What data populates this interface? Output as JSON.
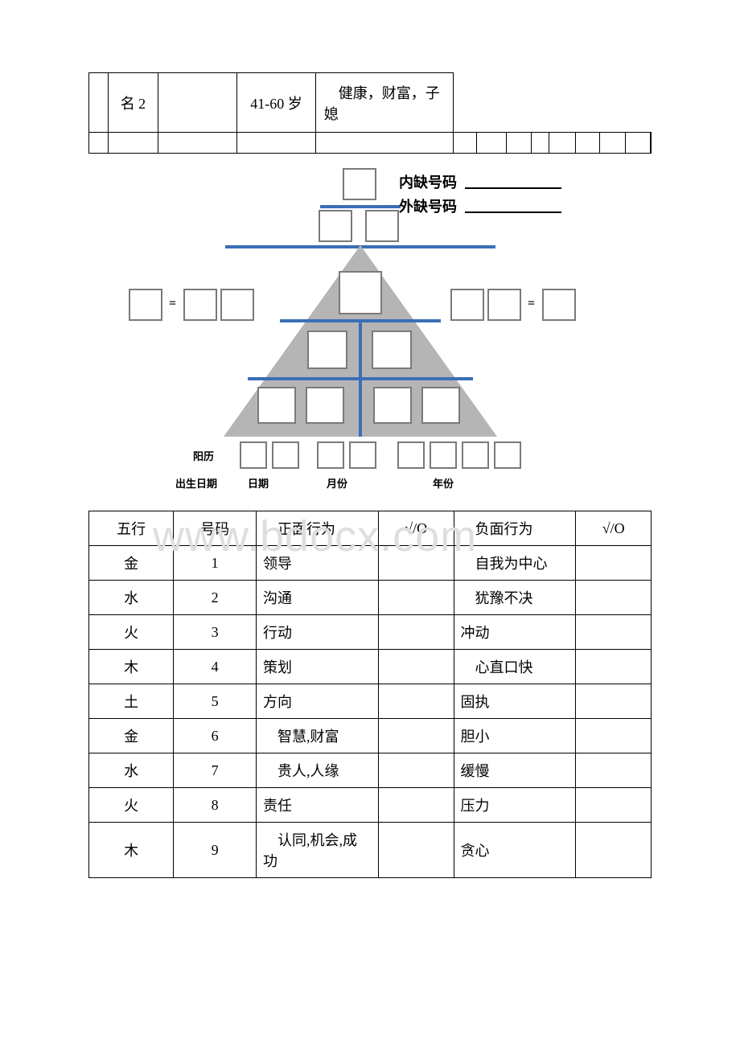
{
  "top_table": {
    "name_label": "名 2",
    "age_label": "41-60 岁",
    "health_text": "　健康，财富，子媳"
  },
  "diagram": {
    "inner_missing_label": "内缺号码",
    "outer_missing_label": "外缺号码",
    "bottom_labels": {
      "calendar": "阳历",
      "birthdate": "出生日期",
      "day": "日期",
      "month": "月份",
      "year": "年份"
    },
    "colors": {
      "line": "#3b6fb6",
      "triangle_fill": "#b5b5b5",
      "box_border": "#7a7a7a"
    }
  },
  "watermark_text": "www.bdocx.com",
  "behavior_table": {
    "headers": {
      "wuxing": "五行",
      "number": "号码",
      "positive": "　正面行为",
      "mark": "√/O",
      "negative": "　负面行为",
      "mark2": "√/O"
    },
    "rows": [
      {
        "wuxing": "金",
        "num": "1",
        "pos": "领导",
        "neg": "　自我为中心"
      },
      {
        "wuxing": "水",
        "num": "2",
        "pos": "沟通",
        "neg": "　犹豫不决"
      },
      {
        "wuxing": "火",
        "num": "3",
        "pos": "行动",
        "neg": "冲动"
      },
      {
        "wuxing": "木",
        "num": "4",
        "pos": "策划",
        "neg": "　心直口快"
      },
      {
        "wuxing": "土",
        "num": "5",
        "pos": "方向",
        "neg": "固执"
      },
      {
        "wuxing": "金",
        "num": "6",
        "pos": "　智慧,财富",
        "neg": "胆小"
      },
      {
        "wuxing": "水",
        "num": "7",
        "pos": "　贵人,人缘",
        "neg": "缓慢"
      },
      {
        "wuxing": "火",
        "num": "8",
        "pos": "责任",
        "neg": "压力"
      },
      {
        "wuxing": "木",
        "num": "9",
        "pos": "　认同,机会,成功",
        "neg": "贪心"
      }
    ]
  }
}
